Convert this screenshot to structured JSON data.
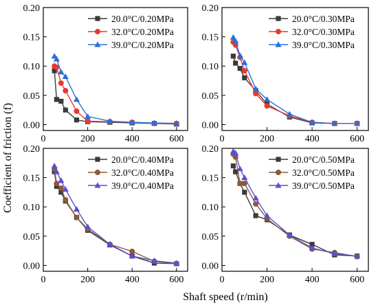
{
  "figure": {
    "xlabel": "Shaft speed (r/min)",
    "ylabel": "Coefficient of friction (f)"
  },
  "colors": {
    "black": "#3a3a3a",
    "red": "#e8392f",
    "blue": "#2a6fdb",
    "brown": "#8b5a3c",
    "purple": "#5b4fd0"
  },
  "chart_data": [
    {
      "type": "line",
      "panel": "top-left",
      "x_ticks": [
        "0",
        "200",
        "400",
        "600"
      ],
      "y_ticks": [
        "0.00",
        "0.05",
        "0.10",
        "0.15",
        "0.20"
      ],
      "xlim": [
        0,
        650
      ],
      "ylim": [
        -0.01,
        0.2
      ],
      "legend_position": "top-right",
      "series": [
        {
          "name": "20.0°C/0.20MPa",
          "color": "#3a3a3a",
          "marker": "square",
          "x": [
            50,
            60,
            80,
            100,
            150,
            200,
            300,
            400,
            500,
            600
          ],
          "y": [
            0.092,
            0.043,
            0.04,
            0.025,
            0.008,
            0.005,
            0.004,
            0.003,
            0.002,
            0.001
          ]
        },
        {
          "name": "32.0°C/0.20MPa",
          "color": "#e8392f",
          "marker": "circle",
          "x": [
            50,
            60,
            80,
            100,
            150,
            200,
            300,
            400,
            500,
            600
          ],
          "y": [
            0.1,
            0.098,
            0.071,
            0.058,
            0.023,
            0.006,
            0.005,
            0.004,
            0.002,
            0.002
          ]
        },
        {
          "name": "39.0°C/0.20MPa",
          "color": "#2a6fdb",
          "marker": "triangle",
          "x": [
            50,
            60,
            80,
            100,
            150,
            200,
            300,
            400,
            500,
            600
          ],
          "y": [
            0.117,
            0.112,
            0.09,
            0.082,
            0.043,
            0.014,
            0.006,
            0.004,
            0.003,
            0.002
          ]
        }
      ]
    },
    {
      "type": "line",
      "panel": "top-right",
      "x_ticks": [
        "0",
        "200",
        "400",
        "600"
      ],
      "y_ticks": [
        "0.00",
        "0.05",
        "0.10",
        "0.15",
        "0.20"
      ],
      "xlim": [
        0,
        650
      ],
      "ylim": [
        -0.01,
        0.2
      ],
      "legend_position": "top-right",
      "series": [
        {
          "name": "20.0°C/0.30MPa",
          "color": "#3a3a3a",
          "marker": "square",
          "x": [
            50,
            60,
            80,
            100,
            150,
            200,
            300,
            400,
            500,
            600
          ],
          "y": [
            0.117,
            0.105,
            0.096,
            0.08,
            0.058,
            0.035,
            0.013,
            0.003,
            0.002,
            0.002
          ]
        },
        {
          "name": "32.0°C/0.30MPa",
          "color": "#e8392f",
          "marker": "circle",
          "x": [
            50,
            60,
            80,
            100,
            150,
            200,
            300,
            400,
            500,
            600
          ],
          "y": [
            0.141,
            0.136,
            0.115,
            0.092,
            0.053,
            0.032,
            0.015,
            0.004,
            0.002,
            0.002
          ]
        },
        {
          "name": "39.0°C/0.30MPa",
          "color": "#2a6fdb",
          "marker": "triangle",
          "x": [
            50,
            60,
            80,
            100,
            150,
            200,
            300,
            400,
            500,
            600
          ],
          "y": [
            0.149,
            0.143,
            0.118,
            0.106,
            0.061,
            0.043,
            0.018,
            0.004,
            0.002,
            0.002
          ]
        }
      ]
    },
    {
      "type": "line",
      "panel": "bottom-left",
      "x_ticks": [
        "0",
        "200",
        "400",
        "600"
      ],
      "y_ticks": [
        "0.00",
        "0.05",
        "0.10",
        "0.15",
        "0.20"
      ],
      "xlim": [
        0,
        650
      ],
      "ylim": [
        -0.01,
        0.2
      ],
      "legend_position": "top-right",
      "series": [
        {
          "name": "20.0°C/0.40MPa",
          "color": "#3a3a3a",
          "marker": "square",
          "x": [
            50,
            60,
            80,
            100,
            150,
            200,
            300,
            400,
            500,
            600
          ],
          "y": [
            0.16,
            0.135,
            0.125,
            0.11,
            0.082,
            0.06,
            0.035,
            0.016,
            0.004,
            0.003
          ]
        },
        {
          "name": "32.0°C/0.40MPa",
          "color": "#8b5a3c",
          "marker": "circle",
          "x": [
            50,
            60,
            80,
            100,
            150,
            200,
            300,
            400,
            500,
            600
          ],
          "y": [
            0.165,
            0.14,
            0.132,
            0.112,
            0.082,
            0.062,
            0.036,
            0.024,
            0.007,
            0.003
          ]
        },
        {
          "name": "39.0°C/0.40MPa",
          "color": "#5b4fd0",
          "marker": "triangle",
          "x": [
            50,
            60,
            80,
            100,
            150,
            200,
            300,
            400,
            500,
            600
          ],
          "y": [
            0.17,
            0.16,
            0.145,
            0.13,
            0.096,
            0.066,
            0.036,
            0.016,
            0.008,
            0.004
          ]
        }
      ]
    },
    {
      "type": "line",
      "panel": "bottom-right",
      "x_ticks": [
        "0",
        "200",
        "400",
        "600"
      ],
      "y_ticks": [
        "0.00",
        "0.05",
        "0.10",
        "0.15",
        "0.20"
      ],
      "xlim": [
        0,
        650
      ],
      "ylim": [
        -0.01,
        0.2
      ],
      "legend_position": "top-right",
      "series": [
        {
          "name": "20.0°C/0.50MPa",
          "color": "#3a3a3a",
          "marker": "square",
          "x": [
            50,
            60,
            80,
            100,
            150,
            200,
            300,
            400,
            500,
            600
          ],
          "y": [
            0.17,
            0.16,
            0.14,
            0.125,
            0.085,
            0.078,
            0.052,
            0.036,
            0.018,
            0.016
          ]
        },
        {
          "name": "32.0°C/0.50MPa",
          "color": "#8b5a3c",
          "marker": "circle",
          "x": [
            50,
            60,
            80,
            100,
            150,
            200,
            300,
            400,
            500,
            600
          ],
          "y": [
            0.19,
            0.185,
            0.14,
            0.14,
            0.105,
            0.08,
            0.05,
            0.028,
            0.022,
            0.015
          ]
        },
        {
          "name": "39.0°C/0.50MPa",
          "color": "#5b4fd0",
          "marker": "triangle",
          "x": [
            50,
            60,
            80,
            100,
            150,
            200,
            300,
            400,
            500,
            600
          ],
          "y": [
            0.195,
            0.192,
            0.165,
            0.15,
            0.115,
            0.085,
            0.052,
            0.03,
            0.02,
            0.016
          ]
        }
      ]
    }
  ]
}
